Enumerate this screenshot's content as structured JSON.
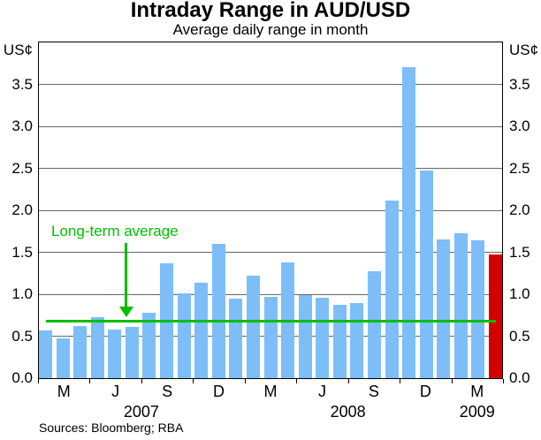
{
  "chart_data": {
    "type": "bar",
    "title": "Intraday Range in AUD/USD",
    "subtitle": "Average daily range in month",
    "unit_left": "US¢",
    "unit_right": "US¢",
    "ylim": [
      0,
      4.0
    ],
    "ytick_labels": [
      "0.0",
      "0.5",
      "1.0",
      "1.5",
      "2.0",
      "2.5",
      "3.0",
      "3.5"
    ],
    "grid": true,
    "legend": "none",
    "categories": [
      "Jan 2007",
      "Feb 2007",
      "Mar 2007",
      "Apr 2007",
      "May 2007",
      "Jun 2007",
      "Jul 2007",
      "Aug 2007",
      "Sep 2007",
      "Oct 2007",
      "Nov 2007",
      "Dec 2007",
      "Jan 2008",
      "Feb 2008",
      "Mar 2008",
      "Apr 2008",
      "May 2008",
      "Jun 2008",
      "Jul 2008",
      "Aug 2008",
      "Sep 2008",
      "Oct 2008",
      "Nov 2008",
      "Dec 2008",
      "Jan 2009",
      "Feb 2009",
      "Mar 2009"
    ],
    "values": [
      0.57,
      0.47,
      0.62,
      0.73,
      0.58,
      0.61,
      0.78,
      1.37,
      1.01,
      1.14,
      1.6,
      0.95,
      1.22,
      0.97,
      1.38,
      0.99,
      0.96,
      0.87,
      0.9,
      1.27,
      2.12,
      3.71,
      2.47,
      1.65,
      1.73,
      1.64,
      1.47
    ],
    "bar_color": "#7dbef8",
    "highlight_last_bar_color": "#d40000",
    "gridline_color": "#666666",
    "average_line": {
      "label": "Long-term average",
      "value": 0.68,
      "color": "#00be00"
    },
    "x_axis": {
      "quarter_letters": [
        "M",
        "J",
        "S",
        "D",
        "M",
        "J",
        "S",
        "D",
        "M"
      ],
      "year_labels": [
        {
          "text": "2007",
          "month_center": 6
        },
        {
          "text": "2008",
          "month_center": 18
        },
        {
          "text": "2009",
          "month_center": 25.5
        }
      ]
    },
    "source": "Sources: Bloomberg; RBA"
  }
}
